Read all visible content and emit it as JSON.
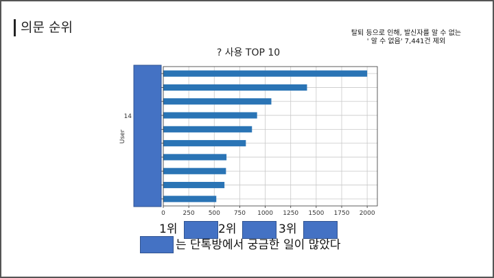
{
  "slide": {
    "title": "의문 순위",
    "note_line1": "탈퇴 등으로 인해, 발신자를 알 수 없는",
    "note_line2": "' 알 수 없음' 7,441건 제외"
  },
  "ranking": {
    "rank1_label": "1위",
    "rank2_label": "2위",
    "rank3_label": "3위",
    "summary_text": "는 단톡방에서 궁금한 일이 많았다"
  },
  "colors": {
    "bar": "#2a74b5",
    "redaction": "#4472c4",
    "grid": "#c8c8c8",
    "axis": "#333333"
  },
  "chart_data": {
    "type": "bar",
    "orientation": "horizontal",
    "title": "? 사용 TOP 10",
    "ylabel": "User",
    "xlabel": "",
    "y_partial_tick": "14",
    "categories_redacted": true,
    "values": [
      2000,
      1410,
      1060,
      920,
      870,
      810,
      620,
      615,
      600,
      520
    ],
    "xlim": [
      0,
      2100
    ],
    "xticks": [
      0,
      250,
      500,
      750,
      1000,
      1250,
      1500,
      1750,
      2000
    ],
    "grid": true,
    "legend": "none"
  }
}
